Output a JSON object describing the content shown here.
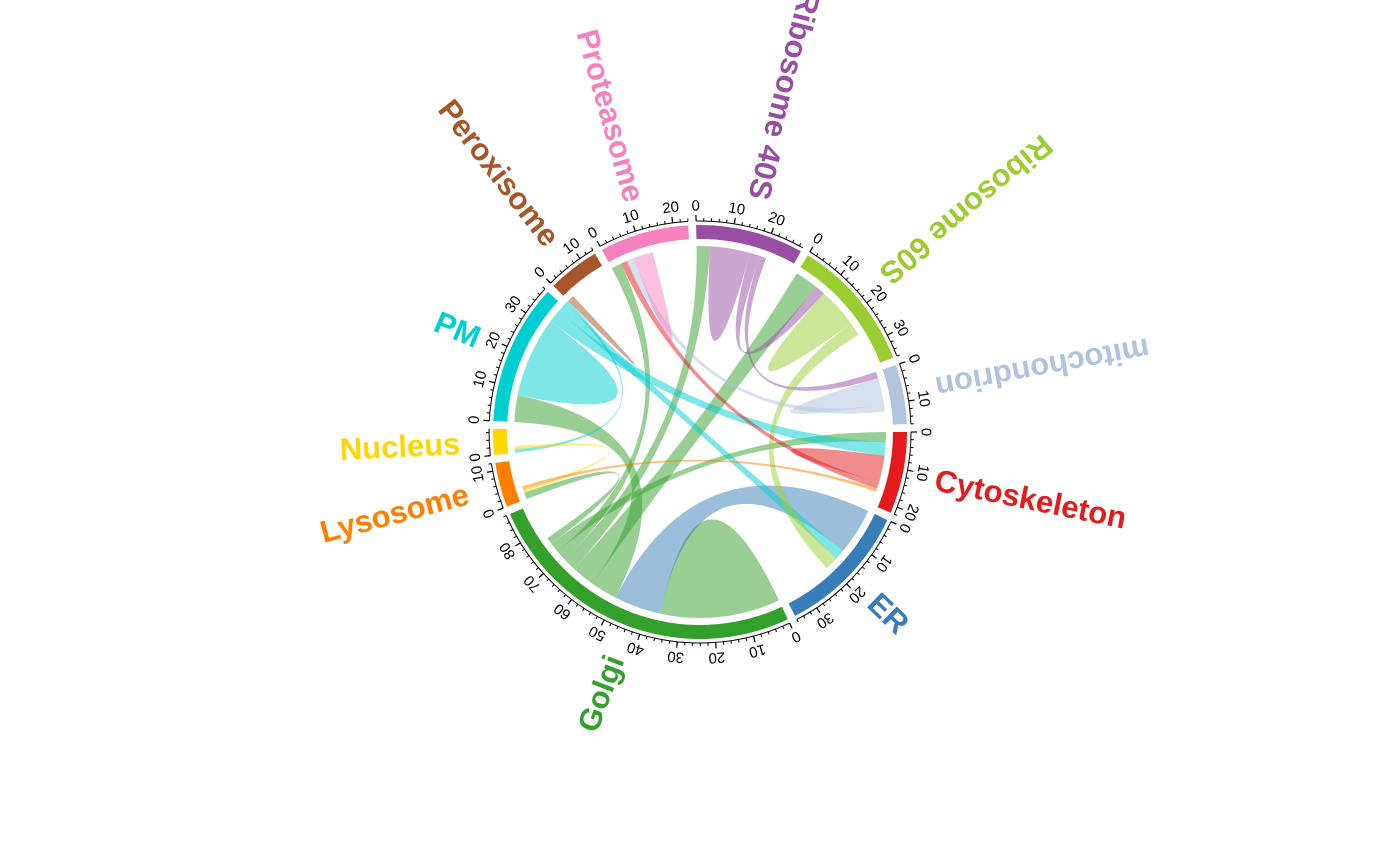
{
  "chart_data": {
    "type": "chord",
    "title": "",
    "sectors": [
      {
        "name": "Cytoskeleton",
        "color": "#E41A1C",
        "total": 22,
        "ticks": [
          0,
          10,
          20
        ]
      },
      {
        "name": "ER",
        "color": "#377EB8",
        "total": 36,
        "ticks": [
          0,
          10,
          20,
          30
        ]
      },
      {
        "name": "Golgi",
        "color": "#33A02C",
        "total": 88,
        "ticks": [
          0,
          10,
          20,
          30,
          40,
          50,
          60,
          70,
          80
        ]
      },
      {
        "name": "Lysosome",
        "color": "#FF7F00",
        "total": 12,
        "ticks": [
          0,
          10
        ]
      },
      {
        "name": "Nucleus",
        "color": "#FFD700",
        "total": 7,
        "ticks": [
          0
        ]
      },
      {
        "name": "PM",
        "color": "#00CED1",
        "total": 38,
        "ticks": [
          0,
          10,
          20,
          30
        ]
      },
      {
        "name": "Peroxisome",
        "color": "#A65628",
        "total": 14,
        "ticks": [
          0,
          10
        ]
      },
      {
        "name": "Proteasome",
        "color": "#F781BF",
        "total": 24,
        "ticks": [
          0,
          10,
          20
        ]
      },
      {
        "name": "Ribosome 40S",
        "color": "#984EA3",
        "total": 29,
        "ticks": [
          0,
          10,
          20
        ]
      },
      {
        "name": "Ribosome 60S",
        "color": "#9ACD32",
        "total": 36,
        "ticks": [
          0,
          10,
          20,
          30
        ]
      },
      {
        "name": "mitochondrion",
        "color": "#B0C4DE",
        "total": 16,
        "ticks": [
          0,
          10
        ]
      }
    ],
    "links": [
      {
        "source": "Golgi",
        "target": "Golgi",
        "value": 18
      },
      {
        "source": "ER",
        "target": "Golgi",
        "value": 14
      },
      {
        "source": "Golgi",
        "target": "PM",
        "value": 8
      },
      {
        "source": "Golgi",
        "target": "Ribosome 60S",
        "value": 7
      },
      {
        "source": "Golgi",
        "target": "Ribosome 40S",
        "value": 4
      },
      {
        "source": "Golgi",
        "target": "Proteasome",
        "value": 3
      },
      {
        "source": "Golgi",
        "target": "Cytoskeleton",
        "value": 3
      },
      {
        "source": "Golgi",
        "target": "Lysosome",
        "value": 2
      },
      {
        "source": "PM",
        "target": "PM",
        "value": 12
      },
      {
        "source": "PM",
        "target": "Cytoskeleton",
        "value": 4
      },
      {
        "source": "PM",
        "target": "ER",
        "value": 3
      },
      {
        "source": "PM",
        "target": "Nucleus",
        "value": 1
      },
      {
        "source": "Ribosome 40S",
        "target": "Ribosome 40S",
        "value": 6
      },
      {
        "source": "Ribosome 40S",
        "target": "Ribosome 60S",
        "value": 3
      },
      {
        "source": "Ribosome 40S",
        "target": "mitochondrion",
        "value": 2
      },
      {
        "source": "Ribosome 60S",
        "target": "Ribosome 60S",
        "value": 6
      },
      {
        "source": "Ribosome 60S",
        "target": "ER",
        "value": 4
      },
      {
        "source": "Cytoskeleton",
        "target": "Cytoskeleton",
        "value": 4
      },
      {
        "source": "Cytoskeleton",
        "target": "Proteasome",
        "value": 2
      },
      {
        "source": "mitochondrion",
        "target": "mitochondrion",
        "value": 4
      },
      {
        "source": "mitochondrion",
        "target": "Proteasome",
        "value": 2
      },
      {
        "source": "Proteasome",
        "target": "Proteasome",
        "value": 3
      },
      {
        "source": "Nucleus",
        "target": "Lysosome",
        "value": 1
      },
      {
        "source": "Peroxisome",
        "target": "PM",
        "value": 2
      },
      {
        "source": "Lysosome",
        "target": "Cytoskeleton",
        "value": 1
      }
    ]
  }
}
